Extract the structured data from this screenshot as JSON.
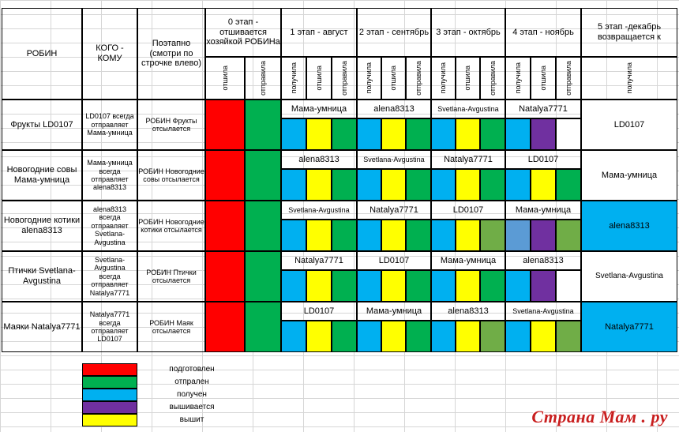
{
  "colors": {
    "red": "#ff0000",
    "green": "#00b050",
    "blue": "#00b0f0",
    "yellow": "#ffff00",
    "purple": "#7030a0",
    "olive": "#70ad47",
    "ltblue": "#5b9bd5",
    "white": "#ffffff"
  },
  "header": {
    "robin": "РОБИН",
    "kogo": "КОГО - КОМУ",
    "poetapno": "Поэтапно (смотри по строчке влево)",
    "stage0": "0 этап - отшивается хозяйкой РОБИНа",
    "stage1": "1 этап - август",
    "stage2": "2 этап - сентябрь",
    "stage3": "3 этап - октябрь",
    "stage4": "4 этап - ноябрь",
    "stage5": "5 этап -декабрь возвращается к",
    "sub_otshila": "отшила",
    "sub_otpravila": "отправила",
    "sub_poluchila": "получила"
  },
  "rows": [
    {
      "robin": "Фрукты LD0107",
      "kogo": "LD0107 всегда отправляет Мама-умница",
      "note": "РОБИН Фрукты отсылается",
      "names": [
        "Мама-умница",
        "alena8313",
        "Svetlana-Avgustina",
        "Natalya7771"
      ],
      "returns": "LD0107",
      "cells": [
        "blue",
        "yellow",
        "green",
        "blue",
        "yellow",
        "green",
        "blue",
        "yellow",
        "green",
        "blue",
        "purple",
        "white"
      ],
      "ret_color": "white"
    },
    {
      "robin": "Новогодние совы Мама-умница",
      "kogo": "Мама-умница всегда отправляет alena8313",
      "note": "РОБИН Новогодние совы отсылается",
      "names": [
        "alena8313",
        "Svetlana-Avgustina",
        "Natalya7771",
        "LD0107"
      ],
      "returns": "Мама-умница",
      "cells": [
        "blue",
        "yellow",
        "green",
        "blue",
        "yellow",
        "green",
        "blue",
        "yellow",
        "green",
        "blue",
        "yellow",
        "green"
      ],
      "ret_color": "white"
    },
    {
      "robin": "Новогодние котики alena8313",
      "kogo": "alena8313 всегда отправляет Svetlana-Avgustina",
      "note": "РОБИН Новогодние котики отсылается",
      "names": [
        "Svetlana-Avgustina",
        "Natalya7771",
        "LD0107",
        "Мама-умница"
      ],
      "returns": "alena8313",
      "cells": [
        "blue",
        "yellow",
        "green",
        "blue",
        "yellow",
        "green",
        "blue",
        "yellow",
        "olive",
        "ltblue",
        "purple",
        "olive"
      ],
      "ret_color": "blue"
    },
    {
      "robin": "Птички Svetlana-Avgustina",
      "kogo": "Svetlana-Avgustina всегда отправляет Natalya7771",
      "note": "РОБИН Птички отсылается",
      "names": [
        "Natalya7771",
        "LD0107",
        "Мама-умница",
        "alena8313"
      ],
      "returns": "Svetlana-Avgustina",
      "cells": [
        "blue",
        "yellow",
        "green",
        "blue",
        "yellow",
        "green",
        "blue",
        "yellow",
        "green",
        "blue",
        "purple",
        "white"
      ],
      "ret_color": "white"
    },
    {
      "robin": "Маяки Natalya7771",
      "kogo": "Natalya7771 всегда отправляет LD0107",
      "note": "РОБИН Маяк отсылается",
      "names": [
        "LD0107",
        "Мама-умница",
        "alena8313",
        "Svetlana-Avgustina"
      ],
      "returns": "Natalya7771",
      "cells": [
        "blue",
        "yellow",
        "green",
        "blue",
        "yellow",
        "green",
        "blue",
        "yellow",
        "olive",
        "blue",
        "yellow",
        "olive"
      ],
      "ret_color": "blue"
    }
  ],
  "legend": [
    {
      "color": "red",
      "label": "подготовлен"
    },
    {
      "color": "green",
      "label": "отпрален"
    },
    {
      "color": "blue",
      "label": "получен"
    },
    {
      "color": "purple",
      "label": "вышивается"
    },
    {
      "color": "yellow",
      "label": "вышит"
    }
  ],
  "watermark": "Страна Мам . ру"
}
